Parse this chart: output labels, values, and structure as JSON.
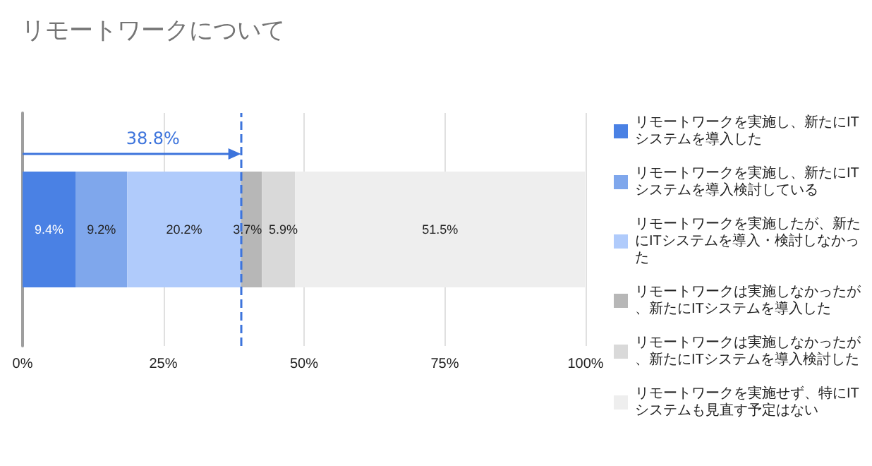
{
  "chart_data": {
    "type": "bar",
    "orientation": "horizontal",
    "stacked": true,
    "title": "リモートワークについて",
    "categories": [
      null
    ],
    "series": [
      {
        "name": "リモートワークを実施し、新たにITシステムを導入した",
        "color": "#4a81e4",
        "values": [
          9.4
        ],
        "value_labels": [
          "9.4%"
        ]
      },
      {
        "name": "リモートワークを実施し、新たにITシステムを導入検討している",
        "color": "#7fa7ec",
        "values": [
          9.2
        ],
        "value_labels": [
          "9.2%"
        ]
      },
      {
        "name": "リモートワークを実施したが、新たにITシステムを導入・検討しなかった",
        "color": "#b0cbfb",
        "values": [
          20.2
        ],
        "value_labels": [
          "20.2%"
        ]
      },
      {
        "name": "リモートワークは実施しなかったが、新たにITシステムを導入した",
        "color": "#b7b7b7",
        "values": [
          3.7
        ],
        "value_labels": [
          "3.7%"
        ]
      },
      {
        "name": "リモートワークは実施しなかったが、新たにITシステムを導入検討した",
        "color": "#d9d9d9",
        "values": [
          5.9
        ],
        "value_labels": [
          "5.9%"
        ]
      },
      {
        "name": "リモートワークを実施せず、特にITシステムも見直す予定はない",
        "color": "#eeeeee",
        "values": [
          51.5
        ],
        "value_labels": [
          "51.5%"
        ]
      }
    ],
    "xlim": [
      0,
      100
    ],
    "xticks": [
      {
        "value": 0,
        "label": "0%"
      },
      {
        "value": 25,
        "label": "25%"
      },
      {
        "value": 50,
        "label": "50%"
      },
      {
        "value": 75,
        "label": "75%"
      },
      {
        "value": 100,
        "label": "100%"
      }
    ],
    "ref_lines": [
      {
        "axis": "x",
        "value": 38.8,
        "label": "38.8%",
        "color": "#3d74dc",
        "line_style": "dashed"
      }
    ],
    "grid": "x",
    "legend": "right"
  }
}
